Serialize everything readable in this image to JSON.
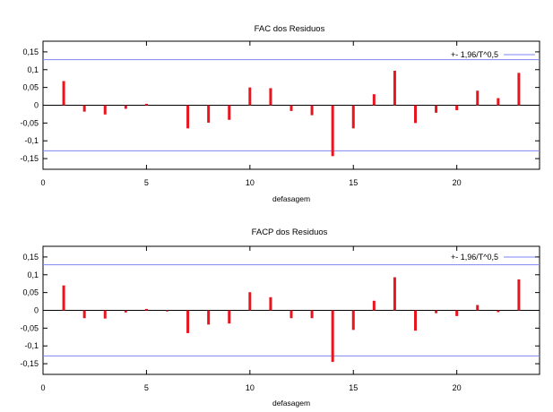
{
  "chart_data": [
    {
      "type": "bar",
      "title": "FAC dos Residuos",
      "xlabel": "defasagem",
      "ylabel": "",
      "xlim": [
        0,
        24
      ],
      "ylim": [
        -0.18,
        0.18
      ],
      "xticks": [
        "0",
        "5",
        "10",
        "15",
        "20"
      ],
      "xtick_values": [
        0,
        5,
        10,
        15,
        20
      ],
      "yticks": [
        "0,15",
        "0,1",
        "0,05",
        "0",
        "-0,05",
        "-0,1",
        "-0,15"
      ],
      "ytick_values": [
        0.15,
        0.1,
        0.05,
        0,
        -0.05,
        -0.1,
        -0.15
      ],
      "bar_color": "#e8141e",
      "band_color": "#7f86f5",
      "legend_label": "+- 1,96/T^0,5",
      "legend_position": "top-right",
      "band": 0.128,
      "lags": [
        1,
        2,
        3,
        4,
        5,
        6,
        7,
        8,
        9,
        10,
        11,
        12,
        13,
        14,
        15,
        16,
        17,
        18,
        19,
        20,
        21,
        22,
        23
      ],
      "values": [
        0.068,
        -0.018,
        -0.026,
        -0.01,
        0.004,
        0,
        -0.065,
        -0.049,
        -0.041,
        0.05,
        0.048,
        -0.016,
        -0.028,
        -0.143,
        -0.065,
        0.031,
        0.097,
        -0.05,
        -0.021,
        -0.014,
        0.041,
        0.02,
        0.091
      ]
    },
    {
      "type": "bar",
      "title": "FACP dos Residuos",
      "xlabel": "defasagem",
      "ylabel": "",
      "xlim": [
        0,
        24
      ],
      "ylim": [
        -0.18,
        0.18
      ],
      "xticks": [
        "0",
        "5",
        "10",
        "15",
        "20"
      ],
      "xtick_values": [
        0,
        5,
        10,
        15,
        20
      ],
      "yticks": [
        "0,15",
        "0,1",
        "0,05",
        "0",
        "-0,05",
        "-0,1",
        "-0,15"
      ],
      "ytick_values": [
        0.15,
        0.1,
        0.05,
        0,
        -0.05,
        -0.1,
        -0.15
      ],
      "bar_color": "#e8141e",
      "band_color": "#7f86f5",
      "legend_label": "+- 1,96/T^0,5",
      "legend_position": "top-right",
      "band": 0.128,
      "lags": [
        1,
        2,
        3,
        4,
        5,
        6,
        7,
        8,
        9,
        10,
        11,
        12,
        13,
        14,
        15,
        16,
        17,
        18,
        19,
        20,
        21,
        22,
        23
      ],
      "values": [
        0.07,
        -0.022,
        -0.023,
        -0.006,
        0.004,
        -0.003,
        -0.064,
        -0.04,
        -0.037,
        0.051,
        0.037,
        -0.022,
        -0.022,
        -0.145,
        -0.055,
        0.027,
        0.093,
        -0.057,
        -0.008,
        -0.016,
        0.015,
        -0.005,
        0.087
      ]
    }
  ]
}
